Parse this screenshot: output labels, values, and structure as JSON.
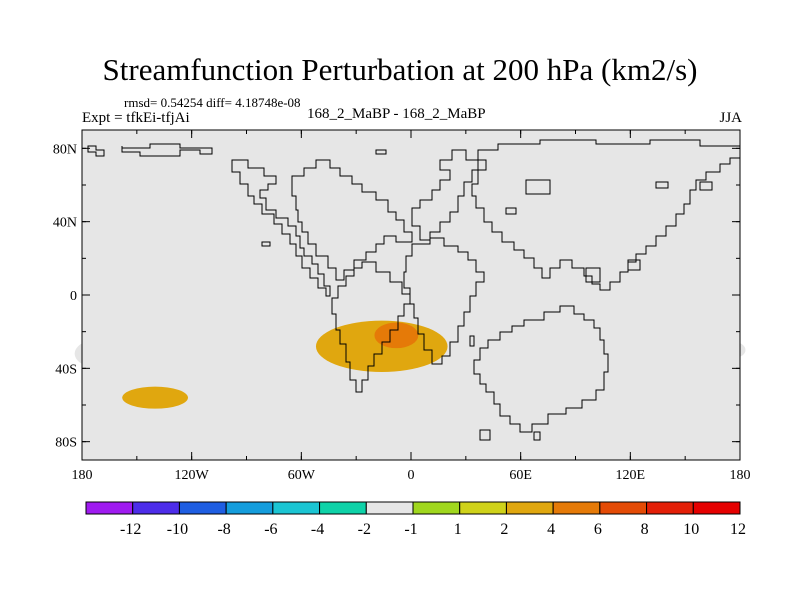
{
  "title": "Streamfunction Perturbation at 200 hPa (km2/s)",
  "stats": "rmsd= 0.54254 diff= 4.18748e-08",
  "expt": "Expt = tfkEi-tfjAi",
  "subtitle": "168_2_MaBP - 168_2_MaBP",
  "season": "JJA",
  "map": {
    "background_color": "#e6e6e6",
    "lon_range": [
      -180,
      180
    ],
    "lat_range": [
      -90,
      90
    ],
    "y_ticks": [
      {
        "lat": 80,
        "label": "80N"
      },
      {
        "lat": 40,
        "label": "40N"
      },
      {
        "lat": 0,
        "label": "0"
      },
      {
        "lat": -40,
        "label": "40S"
      },
      {
        "lat": -80,
        "label": "80S"
      }
    ],
    "x_ticks": [
      {
        "lon": -180,
        "label": "180"
      },
      {
        "lon": -120,
        "label": "120W"
      },
      {
        "lon": -60,
        "label": "60W"
      },
      {
        "lon": 0,
        "label": "0"
      },
      {
        "lon": 60,
        "label": "60E"
      },
      {
        "lon": 120,
        "label": "120E"
      },
      {
        "lon": 180,
        "label": "180"
      }
    ],
    "anomalies": [
      {
        "lon": -31,
        "lat": 6,
        "rlon": 19,
        "rlat": 9,
        "value": -2
      },
      {
        "lon": -170,
        "lat": -32,
        "rlon": 14,
        "rlat": 8,
        "value": -2
      },
      {
        "lon": -83,
        "lat": -54,
        "rlon": 14,
        "rlat": 8,
        "value": -2
      },
      {
        "lon": 139,
        "lat": -30,
        "rlon": 4,
        "rlat": 3,
        "value": -2
      },
      {
        "lon": 178,
        "lat": -30,
        "rlon": 5,
        "rlat": 4,
        "value": -2
      },
      {
        "lon": -16,
        "lat": -28,
        "rlon": 36,
        "rlat": 14,
        "value": 2
      },
      {
        "lon": -8,
        "lat": -22,
        "rlon": 12,
        "rlat": 7,
        "value": 4
      },
      {
        "lon": -140,
        "lat": -56,
        "rlon": 18,
        "rlat": 6,
        "value": 2
      }
    ]
  },
  "colorbar": {
    "colors": [
      "#9f1bf0",
      "#4d2de9",
      "#1f5ee2",
      "#159ddc",
      "#1bc5d3",
      "#0ed2a8",
      "#e6e6e6",
      "#a0d71e",
      "#cfd21a",
      "#e0a70f",
      "#e57a08",
      "#e44b06",
      "#e31f07",
      "#e50000"
    ],
    "labels": [
      "-12",
      "-10",
      "-8",
      "-6",
      "-4",
      "-2",
      "-1",
      "1",
      "2",
      "4",
      "6",
      "8",
      "10",
      "12"
    ],
    "levels": [
      -12,
      -10,
      -8,
      -6,
      -4,
      -2,
      -1,
      1,
      2,
      4,
      6,
      8,
      10,
      12
    ]
  }
}
